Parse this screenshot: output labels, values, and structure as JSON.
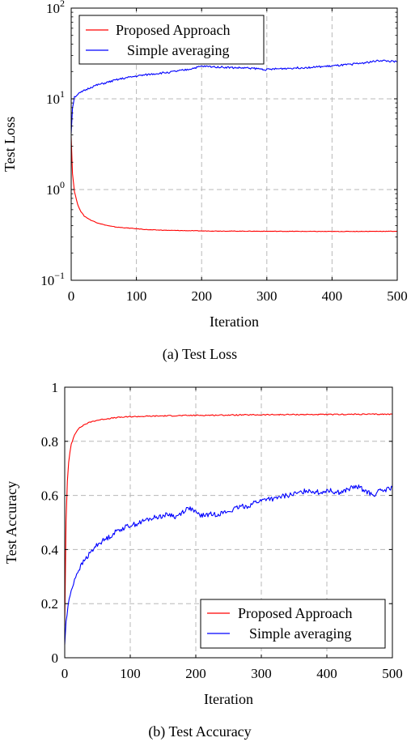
{
  "colors": {
    "proposed": "#ff0000",
    "simple": "#0000ff"
  },
  "chart_data": [
    {
      "type": "line",
      "xlabel": "Iteration",
      "ylabel": "Test Loss",
      "caption": "(a) Test Loss",
      "xlim": [
        0,
        500
      ],
      "ylim": [
        0.1,
        100
      ],
      "yscale": "log",
      "grid": true,
      "legend_position": "top-left",
      "x_ticks": [
        "0",
        "100",
        "200",
        "300",
        "400",
        "500"
      ],
      "y_ticks": [
        {
          "base": "10",
          "exp": "−1"
        },
        {
          "base": "10",
          "exp": "0"
        },
        {
          "base": "10",
          "exp": "1"
        },
        {
          "base": "10",
          "exp": "2"
        }
      ],
      "series": [
        {
          "name": "Proposed Approach",
          "color": "#ff0000",
          "x": [
            0,
            2,
            5,
            10,
            15,
            20,
            30,
            40,
            50,
            60,
            70,
            80,
            100,
            120,
            150,
            200,
            250,
            300,
            350,
            400,
            450,
            500
          ],
          "y": [
            3.8,
            1.5,
            0.95,
            0.68,
            0.57,
            0.51,
            0.46,
            0.43,
            0.41,
            0.395,
            0.385,
            0.38,
            0.37,
            0.36,
            0.355,
            0.35,
            0.348,
            0.347,
            0.346,
            0.345,
            0.346,
            0.347
          ]
        },
        {
          "name": "Simple averaging",
          "color": "#0000ff",
          "x": [
            0,
            2,
            5,
            10,
            20,
            30,
            40,
            50,
            60,
            70,
            80,
            100,
            125,
            150,
            175,
            200,
            225,
            250,
            275,
            300,
            325,
            350,
            375,
            400,
            425,
            450,
            475,
            500
          ],
          "y": [
            4.2,
            8.0,
            10.5,
            11.2,
            12.3,
            13.4,
            14.2,
            14.8,
            15.5,
            16.2,
            16.8,
            17.8,
            18.8,
            19.6,
            20.8,
            22.8,
            22.5,
            22.0,
            21.8,
            21.0,
            21.6,
            22.0,
            22.4,
            23.0,
            23.8,
            25.0,
            26.5,
            25.5
          ]
        }
      ]
    },
    {
      "type": "line",
      "xlabel": "Iteration",
      "ylabel": "Test Accuracy",
      "caption": "(b) Test Accuracy",
      "xlim": [
        0,
        500
      ],
      "ylim": [
        0,
        1
      ],
      "grid": true,
      "legend_position": "bottom-right",
      "x_ticks": [
        "0",
        "100",
        "200",
        "300",
        "400",
        "500"
      ],
      "y_ticks": [
        "0",
        "0.2",
        "0.4",
        "0.6",
        "0.8",
        "1"
      ],
      "series": [
        {
          "name": "Proposed Approach",
          "color": "#ff0000",
          "x": [
            0,
            2,
            4,
            6,
            8,
            10,
            15,
            20,
            30,
            40,
            50,
            60,
            80,
            100,
            150,
            200,
            250,
            300,
            350,
            400,
            450,
            500
          ],
          "y": [
            0.12,
            0.5,
            0.65,
            0.72,
            0.76,
            0.79,
            0.825,
            0.845,
            0.862,
            0.872,
            0.878,
            0.882,
            0.888,
            0.891,
            0.894,
            0.896,
            0.897,
            0.898,
            0.899,
            0.899,
            0.9,
            0.9
          ]
        },
        {
          "name": "Simple averaging",
          "color": "#0000ff",
          "x": [
            0,
            2,
            5,
            10,
            15,
            20,
            30,
            40,
            50,
            60,
            70,
            80,
            90,
            100,
            110,
            125,
            140,
            150,
            160,
            170,
            180,
            190,
            200,
            210,
            220,
            230,
            240,
            250,
            260,
            270,
            280,
            290,
            300,
            310,
            320,
            330,
            340,
            350,
            360,
            370,
            380,
            390,
            400,
            410,
            420,
            430,
            440,
            450,
            460,
            470,
            480,
            490,
            500
          ],
          "y": [
            0.05,
            0.13,
            0.19,
            0.25,
            0.29,
            0.32,
            0.36,
            0.39,
            0.42,
            0.435,
            0.45,
            0.47,
            0.48,
            0.49,
            0.495,
            0.51,
            0.52,
            0.525,
            0.53,
            0.52,
            0.54,
            0.555,
            0.535,
            0.525,
            0.53,
            0.53,
            0.535,
            0.54,
            0.55,
            0.56,
            0.56,
            0.575,
            0.58,
            0.59,
            0.585,
            0.595,
            0.6,
            0.605,
            0.61,
            0.62,
            0.615,
            0.61,
            0.62,
            0.615,
            0.61,
            0.62,
            0.63,
            0.63,
            0.615,
            0.6,
            0.615,
            0.62,
            0.63
          ]
        }
      ]
    }
  ]
}
